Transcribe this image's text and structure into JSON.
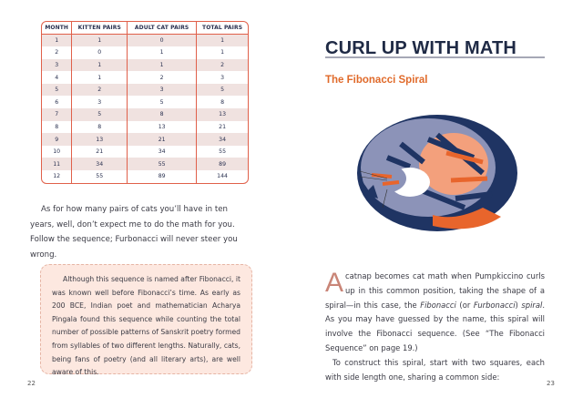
{
  "left_page": {
    "table": {
      "headers": [
        "MONTH",
        "KITTEN PAIRS",
        "ADULT CAT PAIRS",
        "TOTAL PAIRS"
      ],
      "rows": [
        [
          "1",
          "1",
          "0",
          "1"
        ],
        [
          "2",
          "0",
          "1",
          "1"
        ],
        [
          "3",
          "1",
          "1",
          "2"
        ],
        [
          "4",
          "1",
          "2",
          "3"
        ],
        [
          "5",
          "2",
          "3",
          "5"
        ],
        [
          "6",
          "3",
          "5",
          "8"
        ],
        [
          "7",
          "5",
          "8",
          "13"
        ],
        [
          "8",
          "8",
          "13",
          "21"
        ],
        [
          "9",
          "13",
          "21",
          "34"
        ],
        [
          "10",
          "21",
          "34",
          "55"
        ],
        [
          "11",
          "34",
          "55",
          "89"
        ],
        [
          "12",
          "55",
          "89",
          "144"
        ]
      ]
    },
    "paragraph": "As for how many pairs of cats you’ll have in ten years, well, don’t expect me to do the math for you. Follow the sequence; Furbonacci will never steer you wrong.",
    "sidebar": "Although this sequence is named after Fibonacci, it was known well before Fibonacci’s time. As early as 200 BCE, Indian poet and mathematician Acharya Pingala found this sequence while counting the total number of possible patterns of Sanskrit poetry formed from syllables of two different lengths. Naturally, cats, being fans of poetry (and all literary arts), are well aware of this.",
    "page_number": "22"
  },
  "right_page": {
    "title": "CURL UP WITH MATH",
    "subtitle": "The Fibonacci Spiral",
    "illustration": "curled-cat",
    "p1": {
      "drop_cap": "A",
      "text1": "catnap becomes cat math when Pumpkiccino curls up in this common position, taking the shape of a spiral—in this case, the ",
      "em1": "Fibonacci",
      "text2": " (or ",
      "em2": "Furbonacci",
      "text3": ") ",
      "em3": "spiral",
      "text4": ". As you may have guessed by the name, this spiral will involve the Fibonacci sequence. (See “The Fibonacci Sequence” on page 19.)"
    },
    "p2": "To construct this spiral, start with two squares, each with side length one, sharing a common side:",
    "page_number": "23"
  },
  "colors": {
    "accent": "#e06a2a",
    "navy": "#1f2a45",
    "table_border": "#e0604a",
    "sidebar_bg": "#fde8e0"
  }
}
